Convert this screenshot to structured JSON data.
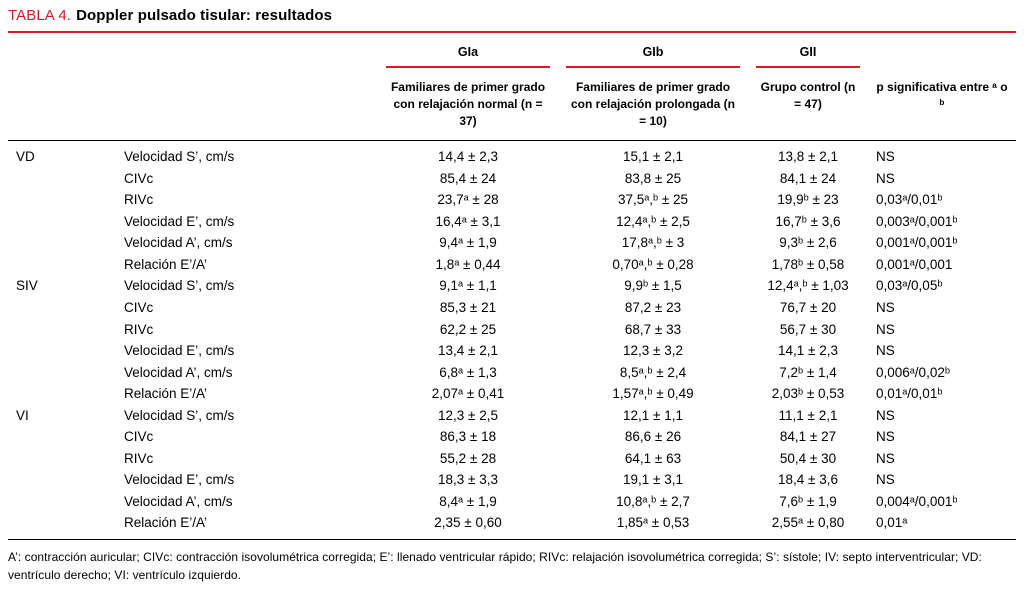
{
  "colors": {
    "accent": "#cb2027",
    "text": "#000000",
    "background": "#ffffff"
  },
  "title": {
    "label": "TABLA 4.",
    "text": "Doppler pulsado tisular: resultados"
  },
  "header": {
    "groups": [
      {
        "label": "GIa",
        "sub": "Familiares de primer grado con relajación normal (n = 37)"
      },
      {
        "label": "GIb",
        "sub": "Familiares de primer grado con relajación prolongada (n = 10)"
      },
      {
        "label": "GII",
        "sub": "Grupo control (n = 47)"
      }
    ],
    "p_label": "p significativa entre ᵃ o ᵇ"
  },
  "rows": [
    {
      "section": "VD",
      "param": "Velocidad S’, cm/s",
      "gia": "14,4 ± 2,3",
      "gib": "15,1 ± 2,1",
      "gii": "13,8 ± 2,1",
      "p": "NS"
    },
    {
      "section": "",
      "param": "CIVc",
      "gia": "85,4 ± 24",
      "gib": "83,8 ± 25",
      "gii": "84,1 ± 24",
      "p": "NS"
    },
    {
      "section": "",
      "param": "RIVc",
      "gia": "23,7ᵃ ± 28",
      "gib": "37,5ᵃ,ᵇ ± 25",
      "gii": "19,9ᵇ ± 23",
      "p": "0,03ᵃ/0,01ᵇ"
    },
    {
      "section": "",
      "param": "Velocidad E’, cm/s",
      "gia": "16,4ᵃ ± 3,1",
      "gib": "12,4ᵃ,ᵇ ± 2,5",
      "gii": "16,7ᵇ ± 3,6",
      "p": "0,003ᵃ/0,001ᵇ"
    },
    {
      "section": "",
      "param": "Velocidad A’, cm/s",
      "gia": "9,4ᵃ ± 1,9",
      "gib": "17,8ᵃ,ᵇ ± 3",
      "gii": "9,3ᵇ ± 2,6",
      "p": "0,001ᵃ/0,001ᵇ"
    },
    {
      "section": "",
      "param": "Relación E’/A’",
      "gia": "1,8ᵃ ± 0,44",
      "gib": "0,70ᵃ,ᵇ ± 0,28",
      "gii": "1,78ᵇ ± 0,58",
      "p": "0,001ᵃ/0,001"
    },
    {
      "section": "SIV",
      "param": "Velocidad S’, cm/s",
      "gia": "9,1ᵃ ± 1,1",
      "gib": "9,9ᵇ ± 1,5",
      "gii": "12,4ᵃ,ᵇ ± 1,03",
      "p": "0,03ᵃ/0,05ᵇ"
    },
    {
      "section": "",
      "param": "CIVc",
      "gia": "85,3 ± 21",
      "gib": "87,2 ± 23",
      "gii": "76,7 ± 20",
      "p": "NS"
    },
    {
      "section": "",
      "param": "RIVc",
      "gia": "62,2 ± 25",
      "gib": "68,7 ± 33",
      "gii": "56,7 ± 30",
      "p": "NS"
    },
    {
      "section": "",
      "param": "Velocidad E’, cm/s",
      "gia": "13,4 ± 2,1",
      "gib": "12,3 ± 3,2",
      "gii": "14,1 ± 2,3",
      "p": "NS"
    },
    {
      "section": "",
      "param": "Velocidad A’, cm/s",
      "gia": "6,8ᵃ ± 1,3",
      "gib": "8,5ᵃ,ᵇ ± 2,4",
      "gii": "7,2ᵇ ± 1,4",
      "p": "0,006ᵃ/0,02ᵇ"
    },
    {
      "section": "",
      "param": "Relación E’/A’",
      "gia": "2,07ᵃ ± 0,41",
      "gib": "1,57ᵃ,ᵇ ± 0,49",
      "gii": "2,03ᵇ ± 0,53",
      "p": "0,01ᵃ/0,01ᵇ"
    },
    {
      "section": "VI",
      "param": "Velocidad S’, cm/s",
      "gia": "12,3 ± 2,5",
      "gib": "12,1 ± 1,1",
      "gii": "11,1 ± 2,1",
      "p": "NS"
    },
    {
      "section": "",
      "param": "CIVc",
      "gia": "86,3 ± 18",
      "gib": "86,6 ± 26",
      "gii": "84,1 ± 27",
      "p": "NS"
    },
    {
      "section": "",
      "param": "RIVc",
      "gia": "55,2 ± 28",
      "gib": "64,1 ± 63",
      "gii": "50,4 ± 30",
      "p": "NS"
    },
    {
      "section": "",
      "param": "Velocidad E’, cm/s",
      "gia": "18,3 ± 3,3",
      "gib": "19,1 ± 3,1",
      "gii": "18,4 ± 3,6",
      "p": "NS"
    },
    {
      "section": "",
      "param": "Velocidad A’, cm/s",
      "gia": "8,4ᵃ ± 1,9",
      "gib": "10,8ᵃ,ᵇ ± 2,7",
      "gii": "7,6ᵇ ± 1,9",
      "p": "0,004ᵃ/0,001ᵇ"
    },
    {
      "section": "",
      "param": "Relación E’/A’",
      "gia": "2,35 ± 0,60",
      "gib": "1,85ᵃ ± 0,53",
      "gii": "2,55ᵃ ± 0,80",
      "p": "0,01ᵃ"
    }
  ],
  "footnote": "A’: contracción auricular; CIVc: contracción isovolumétrica corregida; E’: llenado ventricular rápido; RIVc: relajación isovolumétrica corregida; S’: sístole; IV: septo interventricular; VD: ventrículo derecho; VI: ventrículo izquierdo."
}
